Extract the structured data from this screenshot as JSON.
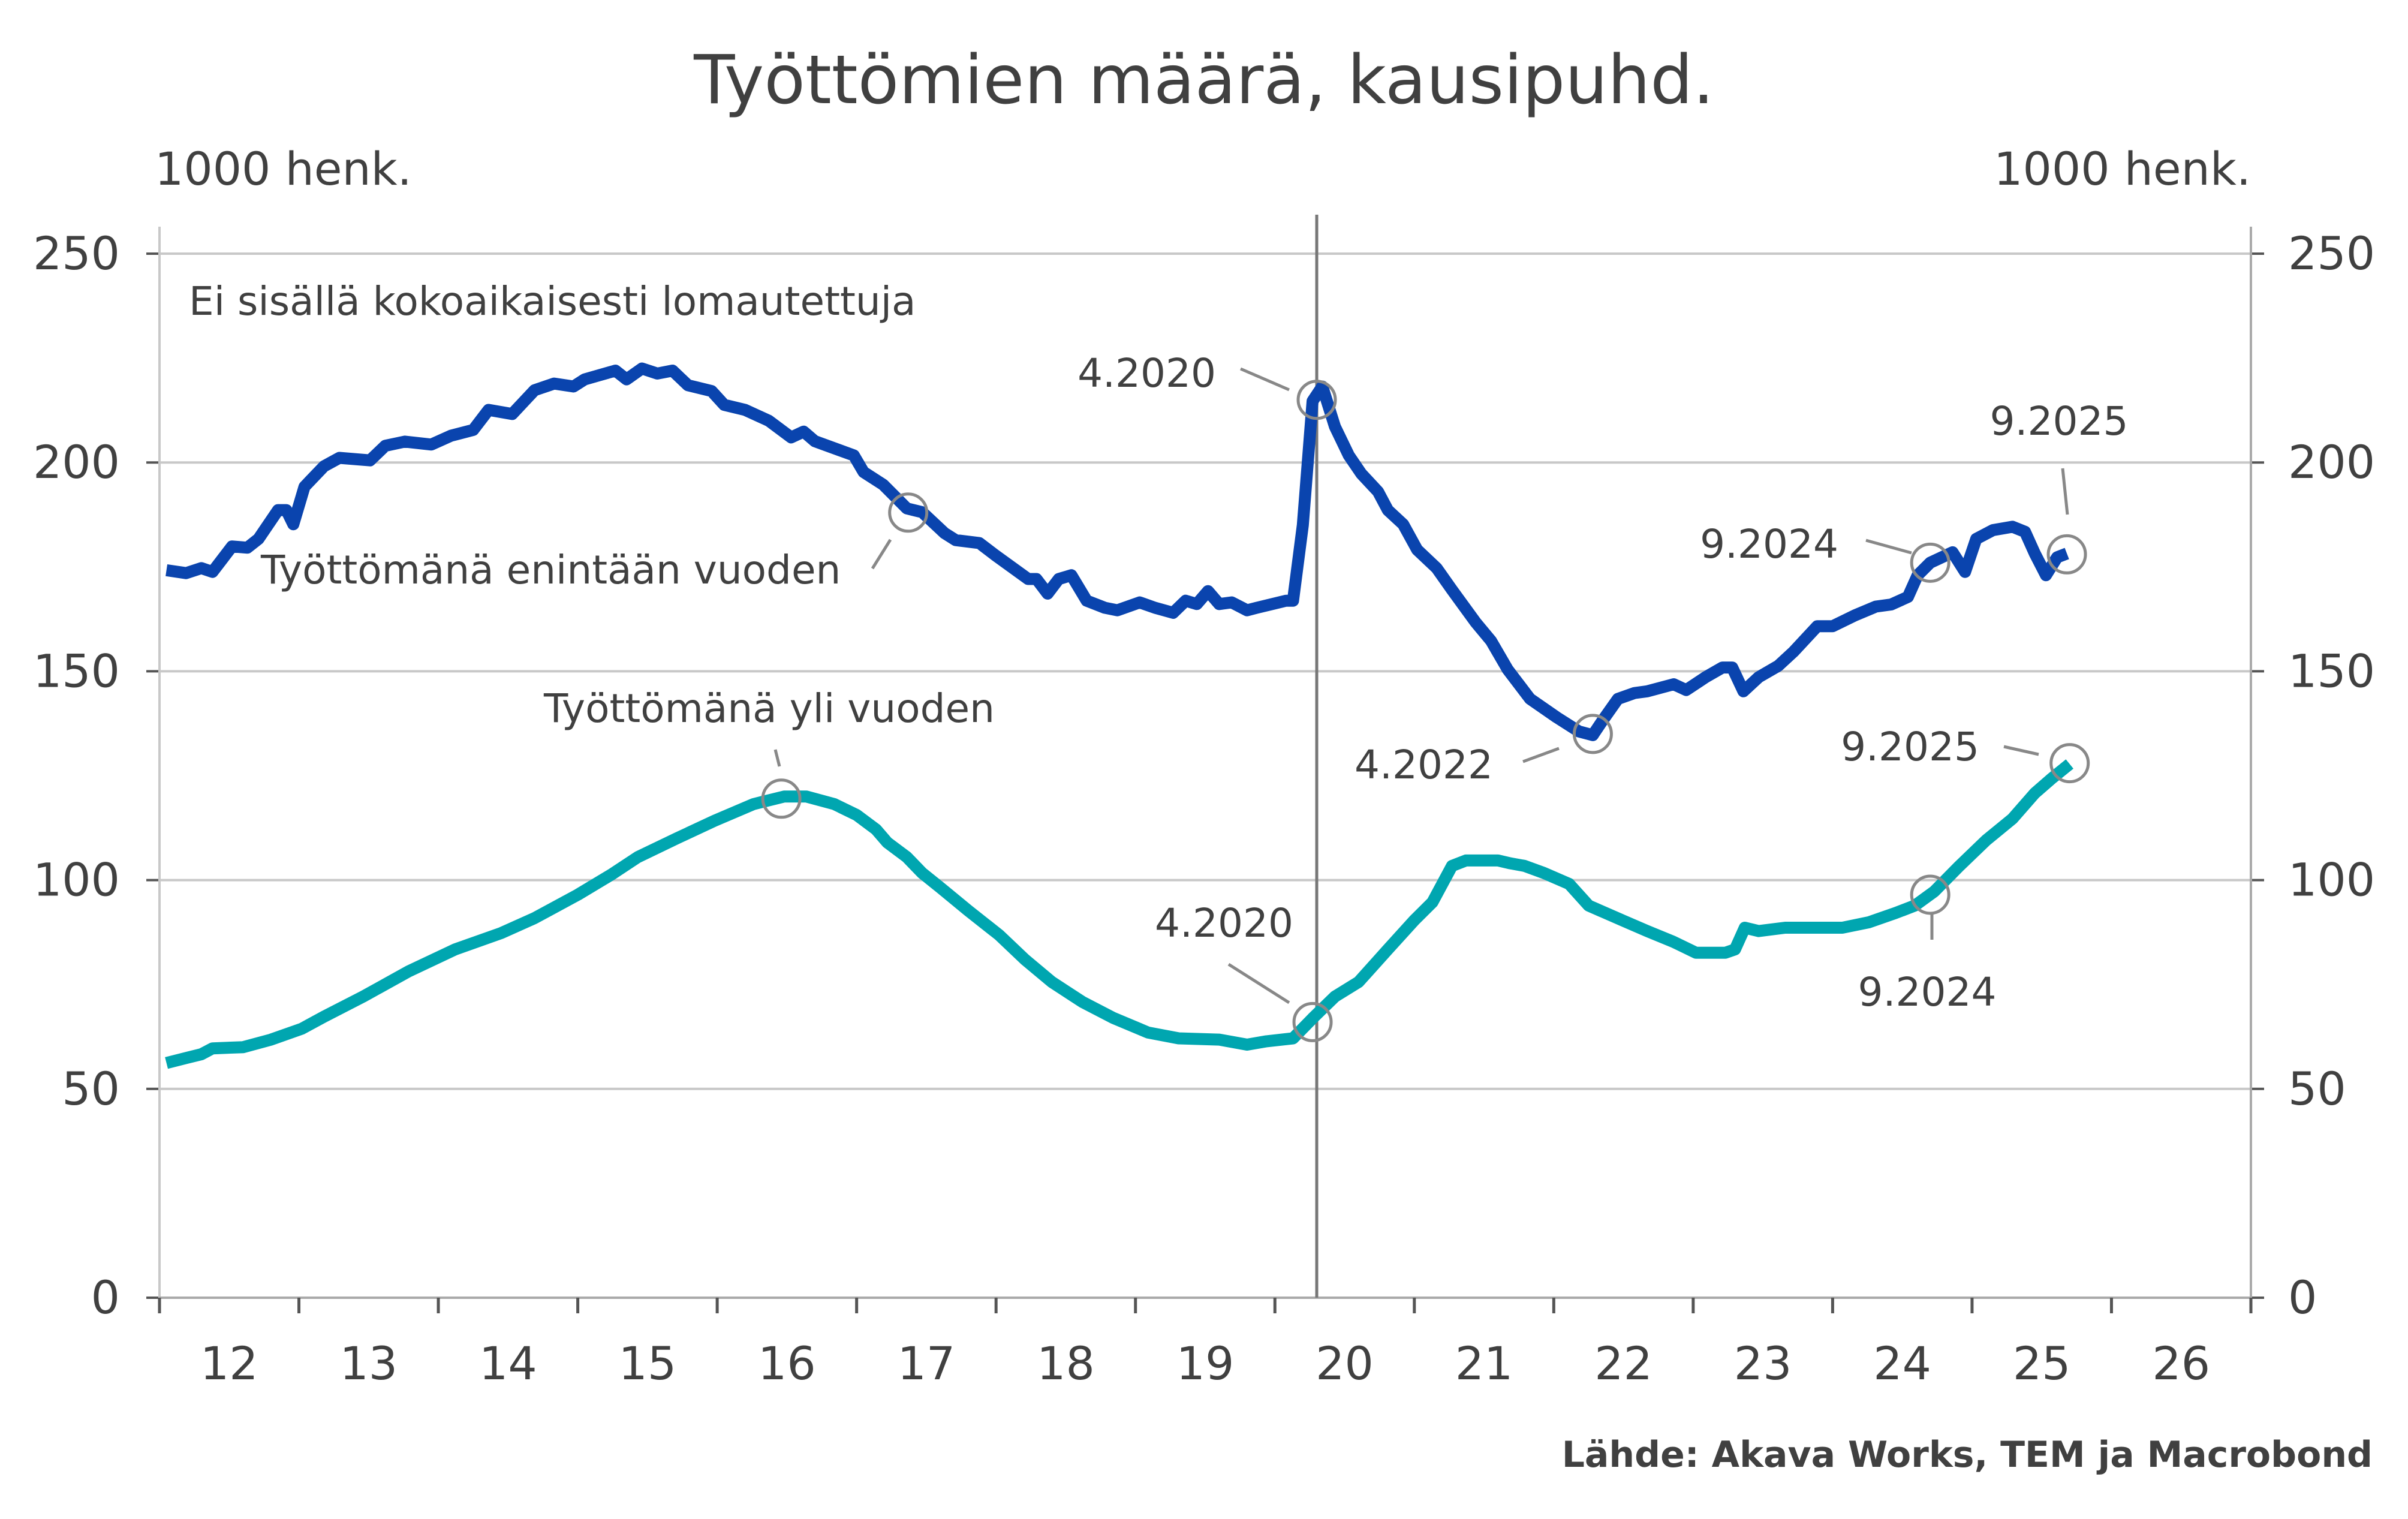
{
  "chart_data": {
    "type": "line",
    "title": "Työttömien määrä, kausipuhd.",
    "ylabel_left": "1000 henk.",
    "ylabel_right": "1000 henk.",
    "note": "Ei sisällä kokoaikaisesti lomautettuja",
    "source": "Lähde: Akava Works, TEM ja Macrobond",
    "xlim": [
      2012,
      2027
    ],
    "ylim": [
      0,
      250
    ],
    "y_ticks": [
      0,
      50,
      100,
      150,
      200,
      250
    ],
    "x_tick_labels": [
      "12",
      "13",
      "14",
      "15",
      "16",
      "17",
      "18",
      "19",
      "20",
      "21",
      "22",
      "23",
      "24",
      "25",
      "26"
    ],
    "grid": true,
    "vertical_marker": 2020.3,
    "series": [
      {
        "name": "Työttömänä enintään vuoden",
        "color": "#0a44ae",
        "points": [
          [
            2012.05,
            174.2
          ],
          [
            2012.19,
            173.5
          ],
          [
            2012.3,
            174.7
          ],
          [
            2012.38,
            173.8
          ],
          [
            2012.52,
            179.9
          ],
          [
            2012.63,
            179.6
          ],
          [
            2012.71,
            181.7
          ],
          [
            2012.85,
            188.6
          ],
          [
            2012.91,
            188.6
          ],
          [
            2012.96,
            185.2
          ],
          [
            2013.04,
            194.2
          ],
          [
            2013.18,
            199.1
          ],
          [
            2013.29,
            201.1
          ],
          [
            2013.51,
            200.5
          ],
          [
            2013.62,
            204
          ],
          [
            2013.76,
            205
          ],
          [
            2013.95,
            204.3
          ],
          [
            2014.09,
            206.4
          ],
          [
            2014.25,
            207.8
          ],
          [
            2014.36,
            212.6
          ],
          [
            2014.53,
            211.6
          ],
          [
            2014.69,
            217.3
          ],
          [
            2014.83,
            218.9
          ],
          [
            2014.97,
            218.2
          ],
          [
            2015.05,
            219.9
          ],
          [
            2015.27,
            222
          ],
          [
            2015.35,
            219.9
          ],
          [
            2015.46,
            222.5
          ],
          [
            2015.57,
            221.3
          ],
          [
            2015.68,
            222
          ],
          [
            2015.79,
            218.5
          ],
          [
            2015.96,
            217.1
          ],
          [
            2016.05,
            213.8
          ],
          [
            2016.2,
            212.6
          ],
          [
            2016.37,
            210
          ],
          [
            2016.53,
            206
          ],
          [
            2016.62,
            207.4
          ],
          [
            2016.7,
            205.1
          ],
          [
            2016.98,
            201.7
          ],
          [
            2017.05,
            197.7
          ],
          [
            2017.19,
            194.7
          ],
          [
            2017.36,
            189
          ],
          [
            2017.47,
            188.1
          ],
          [
            2017.63,
            183.1
          ],
          [
            2017.71,
            181.4
          ],
          [
            2017.88,
            180.7
          ],
          [
            2017.99,
            177.9
          ],
          [
            2018.23,
            172.1
          ],
          [
            2018.29,
            172.1
          ],
          [
            2018.37,
            168.6
          ],
          [
            2018.45,
            172.1
          ],
          [
            2018.54,
            173
          ],
          [
            2018.65,
            166.9
          ],
          [
            2018.78,
            165.2
          ],
          [
            2018.87,
            164.6
          ],
          [
            2019.03,
            166.5
          ],
          [
            2019.14,
            165.2
          ],
          [
            2019.27,
            164
          ],
          [
            2019.36,
            166.9
          ],
          [
            2019.44,
            166.1
          ],
          [
            2019.52,
            169.2
          ],
          [
            2019.6,
            166.1
          ],
          [
            2019.69,
            166.5
          ],
          [
            2019.8,
            164.6
          ],
          [
            2019.87,
            165.2
          ],
          [
            2020.08,
            166.9
          ],
          [
            2020.13,
            166.9
          ],
          [
            2020.2,
            185
          ],
          [
            2020.27,
            214.7
          ],
          [
            2020.34,
            218.2
          ],
          [
            2020.43,
            208.6
          ],
          [
            2020.53,
            201.7
          ],
          [
            2020.62,
            197.3
          ],
          [
            2020.74,
            193
          ],
          [
            2020.81,
            188.6
          ],
          [
            2020.92,
            185.2
          ],
          [
            2021.02,
            179.1
          ],
          [
            2021.16,
            174.7
          ],
          [
            2021.27,
            169.5
          ],
          [
            2021.44,
            161.7
          ],
          [
            2021.55,
            157.3
          ],
          [
            2021.67,
            150.4
          ],
          [
            2021.83,
            143.4
          ],
          [
            2022.02,
            139
          ],
          [
            2022.18,
            135.6
          ],
          [
            2022.28,
            134.7
          ],
          [
            2022.35,
            138.2
          ],
          [
            2022.46,
            143.4
          ],
          [
            2022.58,
            144.8
          ],
          [
            2022.67,
            145.2
          ],
          [
            2022.86,
            146.9
          ],
          [
            2022.95,
            145.5
          ],
          [
            2023.09,
            148.6
          ],
          [
            2023.21,
            150.9
          ],
          [
            2023.28,
            150.9
          ],
          [
            2023.36,
            145.2
          ],
          [
            2023.47,
            148.6
          ],
          [
            2023.61,
            151.3
          ],
          [
            2023.72,
            154.7
          ],
          [
            2023.89,
            160.8
          ],
          [
            2024.0,
            160.8
          ],
          [
            2024.16,
            163.4
          ],
          [
            2024.31,
            165.5
          ],
          [
            2024.42,
            166
          ],
          [
            2024.54,
            167.8
          ],
          [
            2024.61,
            173
          ],
          [
            2024.7,
            176
          ],
          [
            2024.86,
            178.5
          ],
          [
            2024.95,
            173.8
          ],
          [
            2025.03,
            181.7
          ],
          [
            2025.15,
            183.8
          ],
          [
            2025.29,
            184.6
          ],
          [
            2025.38,
            183.4
          ],
          [
            2025.45,
            178.2
          ],
          [
            2025.53,
            173
          ],
          [
            2025.61,
            177.3
          ],
          [
            2025.68,
            178.2
          ]
        ]
      },
      {
        "name": "Työttömänä yli vuoden",
        "color": "#00a6b0",
        "points": [
          [
            2012.05,
            56.2
          ],
          [
            2012.19,
            57.4
          ],
          [
            2012.3,
            58.3
          ],
          [
            2012.38,
            59.7
          ],
          [
            2012.6,
            60
          ],
          [
            2012.8,
            61.8
          ],
          [
            2013.02,
            64.4
          ],
          [
            2013.18,
            67.3
          ],
          [
            2013.46,
            72.1
          ],
          [
            2013.79,
            78.2
          ],
          [
            2014.12,
            83.4
          ],
          [
            2014.45,
            87.3
          ],
          [
            2014.69,
            90.9
          ],
          [
            2015.0,
            96.5
          ],
          [
            2015.24,
            101.3
          ],
          [
            2015.43,
            105.5
          ],
          [
            2015.71,
            110
          ],
          [
            2015.98,
            114.2
          ],
          [
            2016.26,
            118.2
          ],
          [
            2016.48,
            120
          ],
          [
            2016.64,
            120
          ],
          [
            2016.84,
            118.2
          ],
          [
            2017.0,
            115.6
          ],
          [
            2017.14,
            112.1
          ],
          [
            2017.22,
            109
          ],
          [
            2017.36,
            105.5
          ],
          [
            2017.47,
            101.7
          ],
          [
            2017.6,
            98.2
          ],
          [
            2017.8,
            92.7
          ],
          [
            2018.02,
            86.9
          ],
          [
            2018.21,
            80.9
          ],
          [
            2018.4,
            75.6
          ],
          [
            2018.62,
            70.8
          ],
          [
            2018.84,
            67
          ],
          [
            2019.09,
            63.5
          ],
          [
            2019.31,
            62.1
          ],
          [
            2019.6,
            61.8
          ],
          [
            2019.8,
            60.6
          ],
          [
            2019.94,
            61.4
          ],
          [
            2020.13,
            62.1
          ],
          [
            2020.27,
            66.9
          ],
          [
            2020.43,
            72.1
          ],
          [
            2020.6,
            75.6
          ],
          [
            2020.81,
            83.4
          ],
          [
            2021.0,
            90.4
          ],
          [
            2021.13,
            94.7
          ],
          [
            2021.27,
            103.4
          ],
          [
            2021.37,
            104.7
          ],
          [
            2021.6,
            104.7
          ],
          [
            2021.69,
            104
          ],
          [
            2021.79,
            103.4
          ],
          [
            2021.93,
            101.7
          ],
          [
            2022.11,
            99.1
          ],
          [
            2022.25,
            93.9
          ],
          [
            2022.49,
            90.4
          ],
          [
            2022.67,
            87.8
          ],
          [
            2022.86,
            85.2
          ],
          [
            2023.02,
            82.6
          ],
          [
            2023.23,
            82.6
          ],
          [
            2023.3,
            83.4
          ],
          [
            2023.37,
            88.6
          ],
          [
            2023.47,
            87.8
          ],
          [
            2023.66,
            88.6
          ],
          [
            2024.07,
            88.6
          ],
          [
            2024.26,
            89.9
          ],
          [
            2024.45,
            92.1
          ],
          [
            2024.59,
            93.9
          ],
          [
            2024.73,
            97.3
          ],
          [
            2024.91,
            103.4
          ],
          [
            2025.1,
            109.5
          ],
          [
            2025.29,
            114.7
          ],
          [
            2025.45,
            120.8
          ],
          [
            2025.57,
            124.3
          ],
          [
            2025.7,
            127.8
          ]
        ]
      }
    ],
    "annotations": [
      {
        "label": "4.2020",
        "x": 2020.3,
        "y": 215
      },
      {
        "label": "Työttömänä enintään vuoden",
        "x": 2017.37,
        "y": 188
      },
      {
        "label": "Työttömänä yli vuoden",
        "x": 2016.46,
        "y": 119.5
      },
      {
        "label": "4.2020",
        "x": 2020.27,
        "y": 66
      },
      {
        "label": "4.2022",
        "x": 2022.28,
        "y": 135
      },
      {
        "label": "9.2024",
        "x": 2024.7,
        "y": 176
      },
      {
        "label": "9.2025",
        "x": 2025.68,
        "y": 178
      },
      {
        "label": "9.2025",
        "x": 2025.7,
        "y": 128
      },
      {
        "label": "9.2024",
        "x": 2024.7,
        "y": 96.5
      }
    ]
  }
}
